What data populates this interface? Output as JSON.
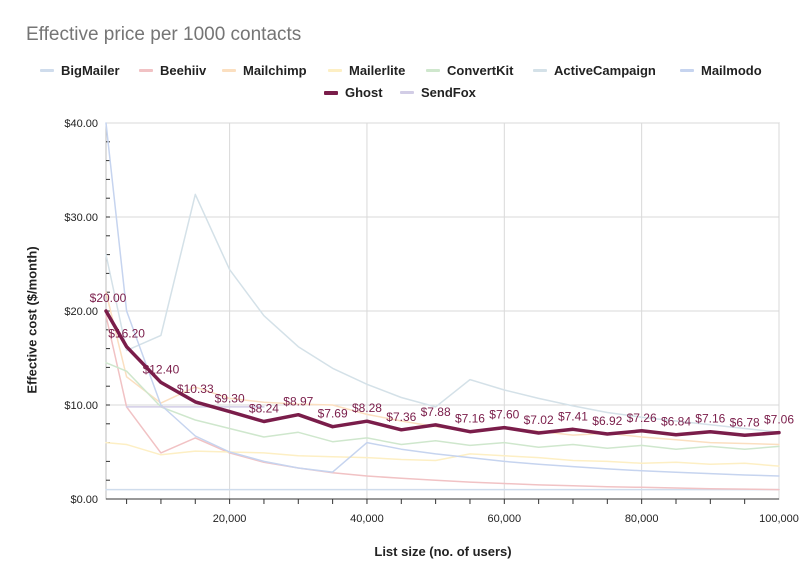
{
  "chart_data": {
    "type": "line",
    "title": "Effective price per 1000 contacts",
    "xlabel": "List size (no. of users)",
    "ylabel": "Effective cost ($/month)",
    "xlim": [
      2000,
      100000
    ],
    "ylim": [
      0,
      40
    ],
    "x_ticks": [
      20000,
      40000,
      60000,
      80000,
      100000
    ],
    "x_tick_labels": [
      "20,000",
      "40,000",
      "60,000",
      "80,000",
      "100,000"
    ],
    "y_ticks": [
      0,
      10,
      20,
      30,
      40
    ],
    "y_tick_labels": [
      "$0.00",
      "$10.00",
      "$20.00",
      "$30.00",
      "$40.00"
    ],
    "grid": true,
    "legend_position": "top",
    "series": [
      {
        "name": "BigMailer",
        "color": "#cfdcec",
        "width": 1.5,
        "x": [
          2000,
          100000
        ],
        "y": [
          1.0,
          1.0
        ]
      },
      {
        "name": "Beehiiv",
        "color": "#f1c2c4",
        "width": 1.5,
        "x": [
          2000,
          5000,
          10000,
          15000,
          20000,
          25000,
          30000,
          35000,
          40000,
          45000,
          50000,
          55000,
          60000,
          65000,
          70000,
          75000,
          80000,
          85000,
          90000,
          95000,
          100000
        ],
        "y": [
          19.5,
          9.8,
          4.9,
          6.5,
          4.9,
          3.9,
          3.3,
          2.8,
          2.45,
          2.2,
          2.0,
          1.8,
          1.65,
          1.5,
          1.4,
          1.3,
          1.25,
          1.17,
          1.1,
          1.05,
          1.0
        ]
      },
      {
        "name": "Mailchimp",
        "color": "#fbdfc0",
        "width": 1.5,
        "x": [
          2000,
          5000,
          10000,
          15000,
          20000,
          25000,
          30000,
          35000,
          40000,
          45000,
          50000,
          55000,
          60000,
          65000,
          70000,
          75000,
          80000,
          85000,
          90000,
          95000,
          100000
        ],
        "y": [
          22.0,
          13.0,
          10.2,
          11.9,
          10.7,
          10.3,
          10.1,
          10.0,
          9.0,
          8.3,
          7.7,
          7.2,
          7.6,
          7.2,
          6.8,
          7.0,
          6.6,
          6.3,
          6.0,
          5.9,
          5.8
        ]
      },
      {
        "name": "Mailerlite",
        "color": "#fdefc4",
        "width": 1.5,
        "x": [
          2000,
          5000,
          10000,
          15000,
          20000,
          25000,
          30000,
          35000,
          40000,
          45000,
          50000,
          55000,
          60000,
          65000,
          70000,
          75000,
          80000,
          85000,
          90000,
          95000,
          100000
        ],
        "y": [
          6.0,
          5.8,
          4.7,
          5.1,
          5.0,
          4.9,
          4.6,
          4.5,
          4.4,
          4.2,
          4.1,
          4.8,
          4.6,
          4.4,
          4.1,
          4.0,
          3.8,
          3.9,
          3.7,
          3.8,
          3.5
        ]
      },
      {
        "name": "ConvertKit",
        "color": "#cfe7cd",
        "width": 1.5,
        "x": [
          2000,
          5000,
          10000,
          15000,
          20000,
          25000,
          30000,
          35000,
          40000,
          45000,
          50000,
          55000,
          60000,
          65000,
          70000,
          75000,
          80000,
          85000,
          90000,
          95000,
          100000
        ],
        "y": [
          14.5,
          13.6,
          9.8,
          8.4,
          7.5,
          6.6,
          7.1,
          6.1,
          6.5,
          5.8,
          6.2,
          5.7,
          6.0,
          5.5,
          5.8,
          5.4,
          5.7,
          5.3,
          5.6,
          5.3,
          5.6
        ]
      },
      {
        "name": "ActiveCampaign",
        "color": "#d4e1e8",
        "width": 1.5,
        "x": [
          2000,
          5000,
          10000,
          15000,
          20000,
          25000,
          30000,
          35000,
          40000,
          45000,
          50000,
          55000,
          60000,
          65000,
          70000,
          75000,
          80000,
          85000,
          90000,
          95000,
          100000
        ],
        "y": [
          26.0,
          15.8,
          17.4,
          32.4,
          24.4,
          19.5,
          16.2,
          13.9,
          12.2,
          10.8,
          9.8,
          12.7,
          11.6,
          10.7,
          9.9,
          9.2,
          8.7,
          8.3,
          7.9,
          7.5,
          7.1
        ]
      },
      {
        "name": "Mailmodo",
        "color": "#c6d4ef",
        "width": 1.5,
        "x": [
          2000,
          5000,
          10000,
          15000,
          20000,
          25000,
          30000,
          35000,
          40000,
          45000,
          50000,
          55000,
          60000,
          65000,
          70000,
          75000,
          80000,
          85000,
          90000,
          95000,
          100000
        ],
        "y": [
          40.0,
          20.0,
          10.0,
          6.7,
          5.0,
          4.0,
          3.3,
          2.86,
          6.0,
          5.3,
          4.8,
          4.4,
          4.0,
          3.7,
          3.45,
          3.2,
          3.0,
          2.85,
          2.7,
          2.55,
          2.45
        ]
      },
      {
        "name": "Ghost",
        "color": "#7a1d4a",
        "width": 3.5,
        "x": [
          2000,
          5000,
          10000,
          15000,
          20000,
          25000,
          30000,
          35000,
          40000,
          45000,
          50000,
          55000,
          60000,
          65000,
          70000,
          75000,
          80000,
          85000,
          90000,
          95000,
          100000
        ],
        "y": [
          20.0,
          16.2,
          12.4,
          10.33,
          9.3,
          8.24,
          8.97,
          7.69,
          8.28,
          7.36,
          7.88,
          7.16,
          7.6,
          7.02,
          7.41,
          6.92,
          7.26,
          6.84,
          7.16,
          6.78,
          7.06
        ],
        "labels": [
          "$20.00",
          "$16.20",
          "$12.40",
          "$10.33",
          "$9.30",
          "$8.24",
          "$8.97",
          "$7.69",
          "$8.28",
          "$7.36",
          "$7.88",
          "$7.16",
          "$7.60",
          "$7.02",
          "$7.41",
          "$6.92",
          "$7.26",
          "$6.84",
          "$7.16",
          "$6.78",
          "$7.06"
        ]
      },
      {
        "name": "SendFox",
        "color": "#d2cde6",
        "width": 1.5,
        "x": [
          5000,
          25000
        ],
        "y": [
          9.8,
          9.8
        ]
      }
    ]
  }
}
